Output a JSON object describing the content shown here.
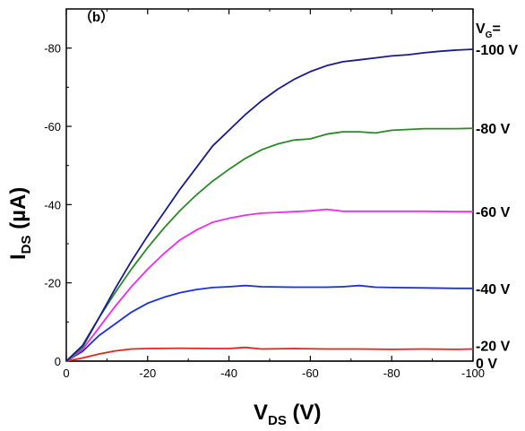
{
  "chart_data": {
    "type": "line",
    "panel_label": "（b）",
    "xlabel": {
      "main": "V",
      "sub": "DS",
      "unit": " (V)"
    },
    "ylabel": {
      "main": "I",
      "sub": "DS",
      "unit": " (µA)"
    },
    "legend_title": {
      "main": "V",
      "sub": "G",
      "suffix": "="
    },
    "xlim": [
      0,
      -100
    ],
    "ylim": [
      0,
      -90
    ],
    "x_ticks": [
      0,
      -20,
      -40,
      -60,
      -80,
      -100
    ],
    "y_ticks": [
      0,
      -20,
      -40,
      -60,
      -80
    ],
    "x_tick_labels": [
      "0",
      "-20",
      "-40",
      "-60",
      "-80",
      "-100"
    ],
    "y_tick_labels": [
      "0",
      "-20",
      "-40",
      "-60",
      "-80"
    ],
    "series": [
      {
        "name": "0 V",
        "color": "#000000",
        "x": [
          0,
          -100
        ],
        "y": [
          0,
          0
        ]
      },
      {
        "name": "-20 V",
        "color": "#e8231c",
        "x": [
          0,
          -4,
          -8,
          -12,
          -16,
          -20,
          -28,
          -36,
          -40,
          -44,
          -48,
          -56,
          -64,
          -72,
          -80,
          -88,
          -96,
          -100
        ],
        "y": [
          0,
          -0.8,
          -1.8,
          -2.6,
          -3.1,
          -3.2,
          -3.3,
          -3.2,
          -3.2,
          -3.5,
          -3.1,
          -3.2,
          -3.1,
          -3.1,
          -3.0,
          -3.1,
          -3.0,
          -3.1
        ]
      },
      {
        "name": "-40 V",
        "color": "#1a2fe8",
        "x": [
          0,
          -4,
          -8,
          -12,
          -16,
          -20,
          -24,
          -28,
          -32,
          -36,
          -40,
          -44,
          -48,
          -56,
          -64,
          -68,
          -72,
          -76,
          -80,
          -88,
          -96,
          -100
        ],
        "y": [
          0,
          -2.5,
          -6.5,
          -9.5,
          -12.5,
          -14.8,
          -16.3,
          -17.5,
          -18.3,
          -18.8,
          -19.0,
          -19.3,
          -19.0,
          -18.9,
          -18.9,
          -19.0,
          -19.3,
          -18.9,
          -18.8,
          -18.7,
          -18.6,
          -18.6
        ]
      },
      {
        "name": "-60 V",
        "color": "#ee2bee",
        "x": [
          0,
          -4,
          -8,
          -12,
          -16,
          -20,
          -24,
          -28,
          -32,
          -36,
          -40,
          -44,
          -48,
          -52,
          -56,
          -60,
          -64,
          -68,
          -72,
          -76,
          -80,
          -88,
          -96,
          -100
        ],
        "y": [
          0,
          -3,
          -8.5,
          -14,
          -19,
          -23.5,
          -27.5,
          -31,
          -33.5,
          -35.5,
          -36.5,
          -37.3,
          -37.8,
          -38,
          -38.2,
          -38.4,
          -38.8,
          -38.3,
          -38.3,
          -38.3,
          -38.3,
          -38.3,
          -38.2,
          -38.2
        ]
      },
      {
        "name": "-80 V",
        "color": "#2a8a26",
        "x": [
          0,
          -4,
          -8,
          -12,
          -16,
          -20,
          -24,
          -28,
          -32,
          -36,
          -40,
          -44,
          -48,
          -52,
          -56,
          -60,
          -64,
          -68,
          -72,
          -76,
          -80,
          -88,
          -96,
          -100
        ],
        "y": [
          0,
          -3.5,
          -11,
          -17.5,
          -23.5,
          -29,
          -34,
          -38.5,
          -42.5,
          -46,
          -49,
          -51.8,
          -54,
          -55.5,
          -56.5,
          -56.8,
          -58,
          -58.6,
          -58.6,
          -58.3,
          -59,
          -59.4,
          -59.4,
          -59.5
        ]
      },
      {
        "name": "-100 V",
        "color": "#1a1a8c",
        "x": [
          0,
          -4,
          -8,
          -12,
          -16,
          -20,
          -24,
          -28,
          -32,
          -36,
          -40,
          -44,
          -48,
          -52,
          -56,
          -60,
          -64,
          -68,
          -72,
          -76,
          -80,
          -84,
          -88,
          -92,
          -96,
          -100
        ],
        "y": [
          0,
          -4,
          -11,
          -18.5,
          -25.5,
          -32,
          -38,
          -44,
          -49.5,
          -55,
          -59,
          -63,
          -66.5,
          -69.5,
          -72,
          -74,
          -75.5,
          -76.5,
          -77,
          -77.5,
          -78,
          -78.3,
          -78.8,
          -79.2,
          -79.5,
          -79.7
        ]
      }
    ]
  }
}
